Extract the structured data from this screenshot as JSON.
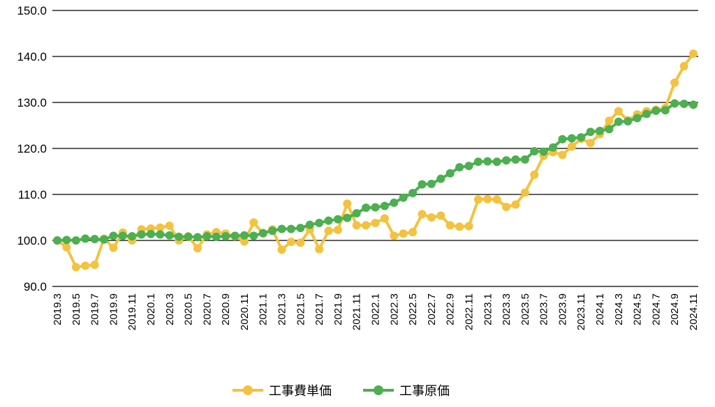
{
  "chart_data": {
    "type": "line",
    "title": "",
    "xlabel": "",
    "ylabel": "",
    "ylim": [
      90,
      150
    ],
    "yticks": [
      "90.0",
      "100.0",
      "110.0",
      "120.0",
      "130.0",
      "140.0",
      "150.0"
    ],
    "grid": "horizontal",
    "legend_position": "bottom",
    "categories": [
      "2019.3",
      "2019.4",
      "2019.5",
      "2019.6",
      "2019.7",
      "2019.8",
      "2019.9",
      "2019.10",
      "2019.11",
      "2019.12",
      "2020.1",
      "2020.2",
      "2020.3",
      "2020.4",
      "2020.5",
      "2020.6",
      "2020.7",
      "2020.8",
      "2020.9",
      "2020.10",
      "2020.11",
      "2020.12",
      "2021.1",
      "2021.2",
      "2021.3",
      "2021.4",
      "2021.5",
      "2021.6",
      "2021.7",
      "2021.8",
      "2021.9",
      "2021.10",
      "2021.11",
      "2021.12",
      "2022.1",
      "2022.2",
      "2022.3",
      "2022.4",
      "2022.5",
      "2022.6",
      "2022.7",
      "2022.8",
      "2022.9",
      "2022.10",
      "2022.11",
      "2022.12",
      "2023.1",
      "2023.2",
      "2023.3",
      "2023.4",
      "2023.5",
      "2023.6",
      "2023.7",
      "2023.8",
      "2023.9",
      "2023.10",
      "2023.11",
      "2023.12",
      "2024.1",
      "2024.2",
      "2024.3",
      "2024.4",
      "2024.5",
      "2024.6",
      "2024.7",
      "2024.8",
      "2024.9",
      "2024.10",
      "2024.11"
    ],
    "xtick_labels": [
      "2019.3",
      "2019.5",
      "2019.7",
      "2019.9",
      "2019.11",
      "2020.1",
      "2020.3",
      "2020.5",
      "2020.7",
      "2020.9",
      "2020.11",
      "2021.1",
      "2021.3",
      "2021.5",
      "2021.7",
      "2021.9",
      "2021.11",
      "2022.1",
      "2022.3",
      "2022.5",
      "2022.7",
      "2022.9",
      "2022.11",
      "2023.1",
      "2023.3",
      "2023.5",
      "2023.7",
      "2023.9",
      "2023.11",
      "2024.1",
      "2024.3",
      "2024.5",
      "2024.7",
      "2024.9",
      "2024.11"
    ],
    "series": [
      {
        "name": "工事費単価",
        "color": "#F4C23F",
        "values": [
          100.0,
          98.5,
          94.2,
          94.5,
          94.7,
          100.4,
          98.4,
          101.7,
          100.0,
          102.4,
          102.6,
          102.8,
          103.2,
          100.0,
          100.9,
          98.3,
          101.3,
          101.8,
          101.5,
          100.9,
          99.8,
          103.9,
          101.5,
          102.4,
          98.0,
          99.7,
          99.5,
          102.4,
          98.1,
          102.1,
          102.3,
          108.0,
          103.3,
          103.3,
          103.8,
          104.8,
          101.0,
          101.5,
          101.8,
          105.7,
          105.0,
          105.4,
          103.3,
          103.0,
          103.1,
          108.9,
          109.0,
          108.9,
          107.3,
          107.8,
          110.4,
          114.3,
          118.4,
          119.2,
          118.6,
          120.4,
          122.1,
          121.2,
          123.1,
          126.0,
          128.1,
          126.1,
          127.4,
          128.1,
          128.4,
          128.8,
          134.3,
          137.9,
          140.6
        ]
      },
      {
        "name": "工事原価",
        "color": "#4CAF50",
        "values": [
          100.0,
          100.1,
          100.0,
          100.4,
          100.3,
          100.2,
          101.0,
          101.0,
          100.9,
          101.3,
          101.4,
          101.3,
          101.1,
          100.8,
          100.8,
          100.7,
          100.9,
          100.8,
          100.9,
          101.0,
          101.1,
          101.0,
          101.6,
          102.1,
          102.5,
          102.5,
          102.7,
          103.4,
          103.8,
          104.3,
          104.6,
          104.9,
          105.9,
          107.1,
          107.2,
          107.5,
          108.2,
          109.3,
          110.3,
          112.2,
          112.3,
          113.4,
          114.6,
          115.9,
          116.2,
          117.1,
          117.2,
          117.1,
          117.4,
          117.6,
          117.6,
          119.4,
          119.3,
          120.2,
          122.0,
          122.2,
          122.4,
          123.6,
          123.8,
          124.2,
          125.8,
          125.9,
          126.6,
          127.5,
          128.2,
          128.3,
          129.8,
          129.7,
          129.5
        ]
      }
    ]
  }
}
